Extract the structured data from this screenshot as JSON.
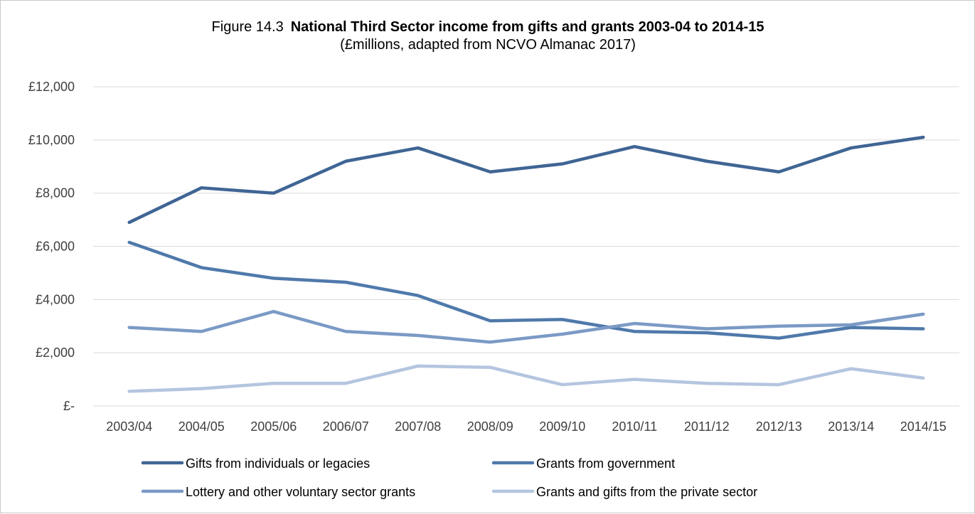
{
  "chart_data": {
    "type": "line",
    "title_prefix": "Figure 14.3",
    "title": "National Third Sector income from gifts and grants 2003-04 to 2014-15",
    "subtitle": "(£millions, adapted from NCVO Almanac 2017)",
    "xlabel": "",
    "ylabel": "",
    "ylim": [
      0,
      12000
    ],
    "yticks": [
      0,
      2000,
      4000,
      6000,
      8000,
      10000,
      12000
    ],
    "ytick_labels": [
      "£-",
      "£2,000",
      "£4,000",
      "£6,000",
      "£8,000",
      "£10,000",
      "£12,000"
    ],
    "grid": true,
    "legend_position": "bottom",
    "categories": [
      "2003/04",
      "2004/05",
      "2005/06",
      "2006/07",
      "2007/08",
      "2008/09",
      "2009/10",
      "2010/11",
      "2011/12",
      "2012/13",
      "2013/14",
      "2014/15"
    ],
    "series": [
      {
        "name": "Gifts from individuals or legacies",
        "color": "#3f6594",
        "values": [
          6900,
          8200,
          8000,
          9200,
          9700,
          8800,
          9100,
          9750,
          9200,
          8800,
          9700,
          10100
        ]
      },
      {
        "name": "Grants from government",
        "color": "#4f79ab",
        "values": [
          6150,
          5200,
          4800,
          4650,
          4150,
          3200,
          3250,
          2800,
          2750,
          2550,
          2950,
          2900
        ]
      },
      {
        "name": "Lottery and other voluntary sector grants",
        "color": "#7b9ac5",
        "values": [
          2950,
          2800,
          3550,
          2800,
          2650,
          2400,
          2700,
          3100,
          2900,
          3000,
          3050,
          3450
        ]
      },
      {
        "name": "Grants and gifts from the private sector",
        "color": "#b4c5df",
        "values": [
          550,
          650,
          850,
          850,
          1500,
          1450,
          800,
          1000,
          850,
          800,
          1400,
          1050
        ]
      }
    ]
  }
}
